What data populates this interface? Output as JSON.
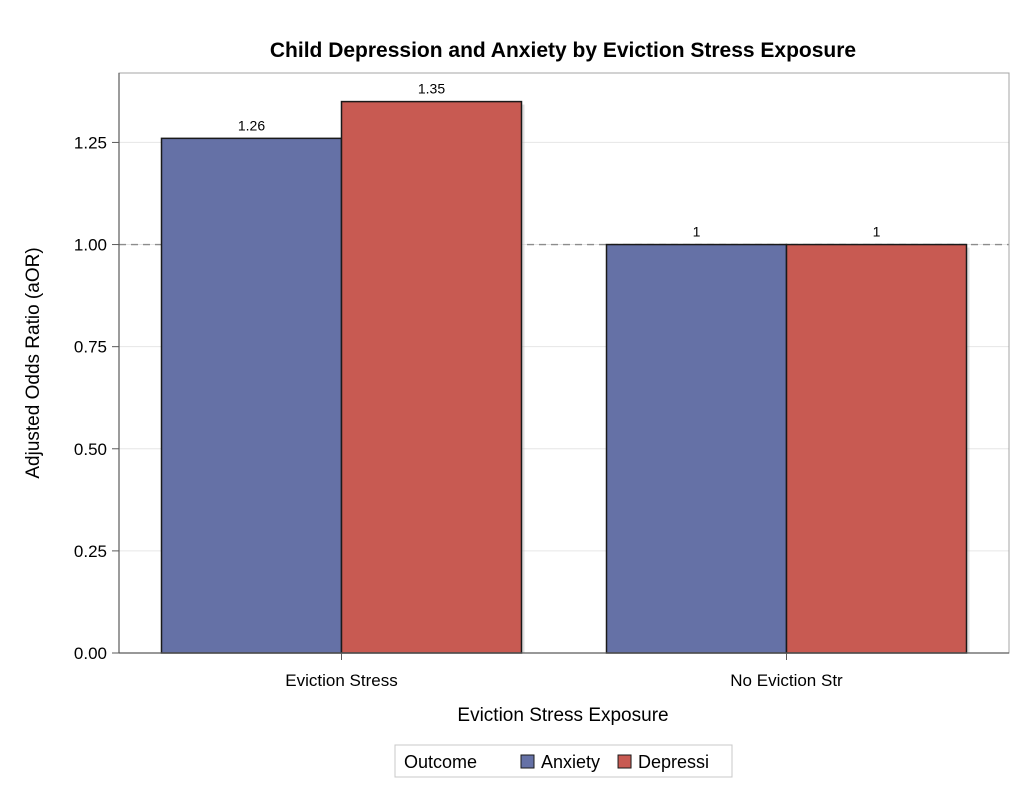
{
  "chart_data": {
    "type": "bar",
    "title": "Child Depression and Anxiety by Eviction Stress Exposure",
    "xlabel": "Eviction Stress Exposure",
    "ylabel": "Adjusted Odds Ratio (aOR)",
    "categories": [
      "Eviction Stress",
      "No Eviction Str"
    ],
    "series": [
      {
        "name": "Anxiety",
        "values": [
          1.26,
          1
        ],
        "labels": [
          "1.26",
          "1"
        ],
        "color": "#6571a6"
      },
      {
        "name": "Depressi",
        "values": [
          1.35,
          1
        ],
        "labels": [
          "1.35",
          "1"
        ],
        "color": "#c85a52"
      }
    ],
    "ylim": [
      0,
      1.42
    ],
    "yticks": [
      0,
      0.25,
      0.5,
      0.75,
      1.0,
      1.25
    ],
    "ytick_labels": [
      "0.00",
      "0.25",
      "0.50",
      "0.75",
      "1.00",
      "1.25"
    ],
    "reference_line": 1.0,
    "grid": true,
    "legend": {
      "title": "Outcome",
      "position": "bottom-center"
    }
  }
}
